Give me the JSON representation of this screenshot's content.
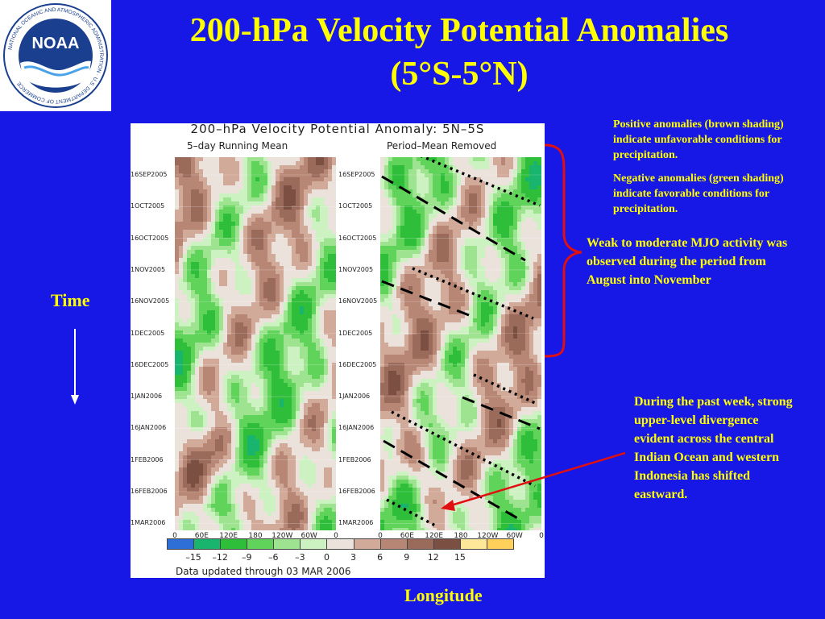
{
  "title": {
    "line1": "200-hPa Velocity Potential Anomalies",
    "line2": "(5°S-5°N)"
  },
  "logo": {
    "center_text": "NOAA",
    "ring_text": "NATIONAL OCEANIC AND ATMOSPHERIC ADMINISTRATION · U.S. DEPARTMENT OF COMMERCE"
  },
  "figure": {
    "title": "200–hPa Velocity Potential Anomaly: 5N–5S",
    "left_subtitle": "5–day Running Mean",
    "right_subtitle": "Period–Mean Removed",
    "date_ticks": [
      "16SEP2005",
      "1OCT2005",
      "16OCT2005",
      "1NOV2005",
      "16NOV2005",
      "1DEC2005",
      "16DEC2005",
      "1JAN2006",
      "16JAN2006",
      "1FEB2006",
      "16FEB2006",
      "1MAR2006"
    ],
    "lon_ticks": [
      "0",
      "60E",
      "120E",
      "180",
      "120W",
      "60W",
      "0"
    ],
    "colorbar_labels": [
      "–15",
      "–12",
      "–9",
      "–6",
      "–3",
      "0",
      "3",
      "6",
      "9",
      "12",
      "15"
    ],
    "colorbar_colors": [
      "#2d6fd6",
      "#19b46e",
      "#2fbe3a",
      "#5fd35a",
      "#9ee38f",
      "#cdf2c2",
      "#ece2dc",
      "#d2aa9a",
      "#b78674",
      "#9a6a5a",
      "#7b4f42",
      "#ffe79a",
      "#ffd15a"
    ],
    "footer": "Data updated through 03 MAR 2006"
  },
  "notes": {
    "positive": "Positive anomalies (brown shading) indicate unfavorable conditions for precipitation.",
    "negative": "Negative anomalies (green shading) indicate favorable conditions for precipitation.",
    "mjo": "Weak to moderate MJO activity was observed during the period  from August into November",
    "past_week": "During the past week, strong upper-level divergence evident across the central Indian Ocean and western Indonesia has shifted eastward."
  },
  "axes": {
    "y_label": "Time",
    "x_label": "Longitude"
  },
  "colors": {
    "background": "#1717e6",
    "title": "#ffff00",
    "brace": "#e01010",
    "arrow": "#e01010"
  }
}
